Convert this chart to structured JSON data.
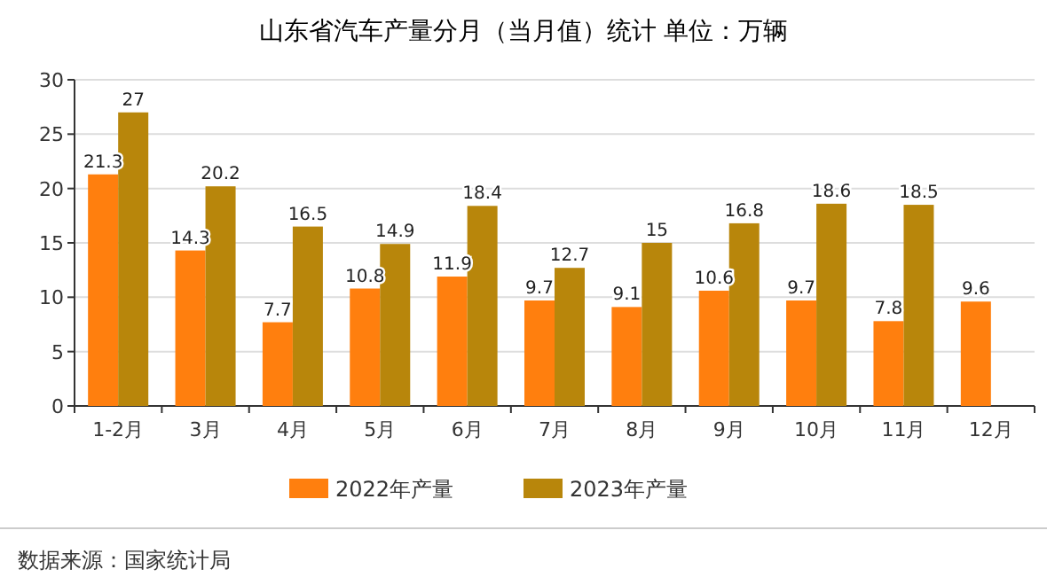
{
  "chart_data": {
    "type": "bar",
    "title": "山东省汽车产量分月（当月值）统计 单位：万辆",
    "categories": [
      "1-2月",
      "3月",
      "4月",
      "5月",
      "6月",
      "7月",
      "8月",
      "9月",
      "10月",
      "11月",
      "12月"
    ],
    "series": [
      {
        "name": "2022年产量",
        "color": "#ff7f0e",
        "values": [
          21.3,
          14.3,
          7.7,
          10.8,
          11.9,
          9.7,
          9.1,
          10.6,
          9.7,
          7.8,
          9.6
        ]
      },
      {
        "name": "2023年产量",
        "color": "#b8860b",
        "values": [
          27,
          20.2,
          16.5,
          14.9,
          18.4,
          12.7,
          15,
          16.8,
          18.6,
          18.5,
          null
        ]
      }
    ],
    "ylim": [
      0,
      30
    ],
    "yticks": [
      0,
      5,
      10,
      15,
      20,
      25,
      30
    ],
    "grid": "y",
    "legend": "bottom",
    "data_labels": true,
    "annotations": [
      "数据来源：国家统计局"
    ]
  }
}
